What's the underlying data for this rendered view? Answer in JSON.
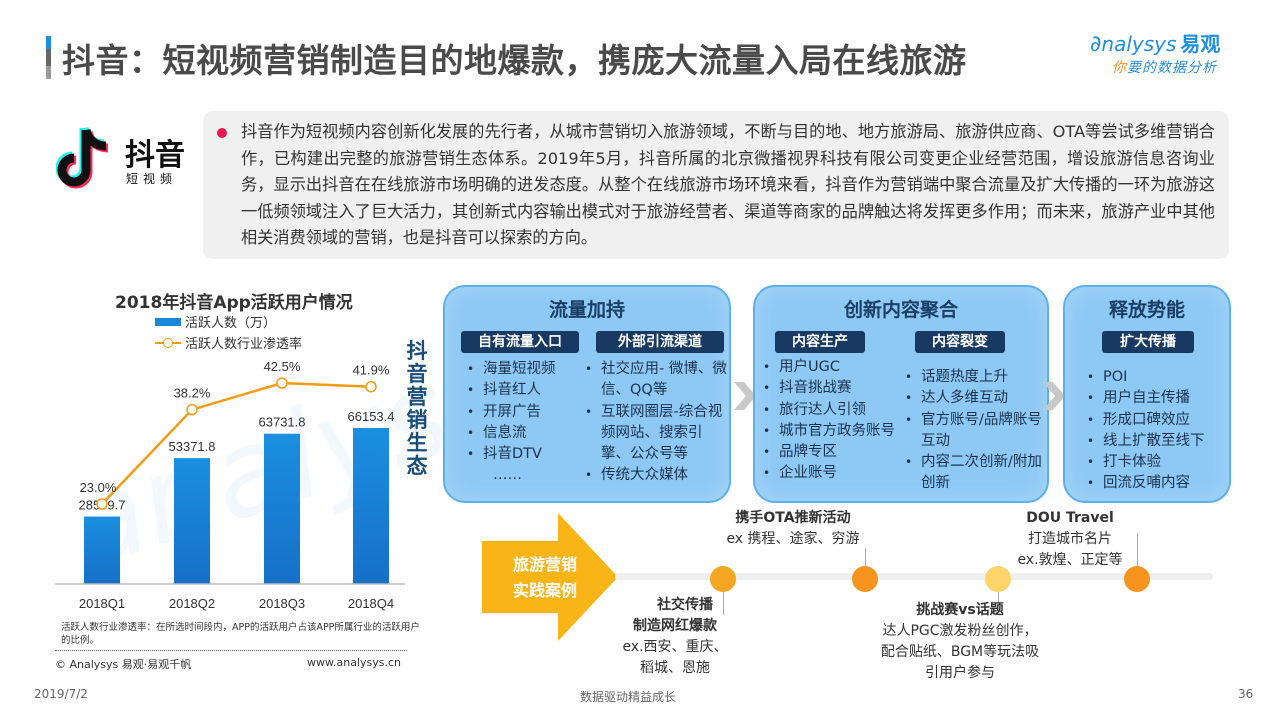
{
  "header": {
    "title": "抖音：短视频营销制造目的地爆款，携庞大流量入局在线旅游",
    "logo_main": "nalysys",
    "logo_cn": "易观",
    "logo_sub_first": "你",
    "logo_sub_rest": "要的数据分析"
  },
  "brand": {
    "name": "抖音",
    "sub": "短视频"
  },
  "intro": {
    "text": "抖音作为短视频内容创新化发展的先行者，从城市营销切入旅游领域，不断与目的地、地方旅游局、旅游供应商、OTA等尝试多维营销合作，已构建出完整的旅游营销生态体系。2019年5月，抖音所属的北京微播视界科技有限公司变更企业经营范围，增设旅游信息咨询业务，显示出抖音在在线旅游市场明确的进发态度。从整个在线旅游市场环境来看，抖音作为营销端中聚合流量及扩大传播的一环为旅游这一低频领域注入了巨大活力，其创新式内容输出模式对于旅游经营者、渠道等商家的品牌触达将发挥更多作用；而未来，旅游产业中其他相关消费领域的营销，也是抖音可以探索的方向。"
  },
  "chart_data": {
    "type": "bar",
    "title": "2018年抖音App活跃用户情况",
    "categories": [
      "2018Q1",
      "2018Q2",
      "2018Q3",
      "2018Q4"
    ],
    "series": [
      {
        "name": "活跃人数（万）",
        "type": "bar",
        "values": [
          28599.7,
          53371.8,
          63731.8,
          66153.4
        ],
        "labels": [
          "28599.7",
          "53371.8",
          "63731.8",
          "66153.4"
        ],
        "color": "#1a86d8"
      },
      {
        "name": "活跃人数行业渗透率",
        "type": "line",
        "values": [
          23.0,
          38.2,
          42.5,
          41.9
        ],
        "labels": [
          "23.0%",
          "38.2%",
          "42.5%",
          "41.9%"
        ],
        "color": "#f39c12"
      }
    ],
    "xlabel": "",
    "ylabel": "",
    "grid": false,
    "legend_position": "top",
    "note": "活跃人数行业渗透率：在所选时间段内，APP的活跃用户占该APP所属行业的活跃用户的比例。",
    "source": "© Analysys 易观·易观千帆",
    "url": "www.analysys.cn"
  },
  "vertical_label": "抖音营销生态",
  "panels": [
    {
      "title": "流量加持",
      "groups": [
        {
          "tag": "自有流量入口",
          "items": [
            "海量短视频",
            "抖音红人",
            "开屏广告",
            "信息流",
            "抖音DTV",
            "……"
          ]
        },
        {
          "tag": "外部引流渠道",
          "items": [
            "社交应用- 微博、微信、QQ等",
            "互联网圈层-综合视频网站、搜索引擎、公众号等",
            "传统大众媒体"
          ]
        }
      ]
    },
    {
      "title": "创新内容聚合",
      "groups": [
        {
          "tag": "内容生产",
          "items": [
            "用户UGC",
            "抖音挑战赛",
            "旅行达人引领",
            "城市官方政务账号",
            "品牌专区",
            "企业账号"
          ]
        },
        {
          "tag": "内容裂变",
          "items": [
            "话题热度上升",
            "达人多维互动",
            "官方账号/品牌账号互动",
            "内容二次创新/附加创新"
          ]
        }
      ]
    },
    {
      "title": "释放势能",
      "groups": [
        {
          "tag": "扩大传播",
          "items": [
            "POI",
            "用户自主传播",
            "形成口碑效应",
            "线上扩散至线下",
            "打卡体验",
            "回流反哺内容"
          ]
        }
      ]
    }
  ],
  "timeline": {
    "arrow_label_1": "旅游营销",
    "arrow_label_2": "实践案例",
    "milestones": [
      {
        "title_1": "社交传播",
        "title_2": "制造网红爆款",
        "desc_1": "ex.西安、重庆、",
        "desc_2": "稻城、恩施",
        "color": "#f5a623"
      },
      {
        "title_1": "携手OTA推新活动",
        "desc_1": "ex 携程、途家、穷游",
        "color": "#f7941d"
      },
      {
        "title_1": "挑战赛vs话题",
        "desc_1": "达人PGC激发粉丝创作，",
        "desc_2": "配合贴纸、BGM等玩法吸",
        "desc_3": "引用户参与",
        "color": "#fdd46a"
      },
      {
        "title_1": "DOU Travel",
        "desc_1": "打造城市名片",
        "desc_2": "ex.敦煌、正定等",
        "color": "#f7941d"
      }
    ]
  },
  "footer": {
    "date": "2019/7/2",
    "slogan": "数据驱动精益成长",
    "page": "36"
  }
}
